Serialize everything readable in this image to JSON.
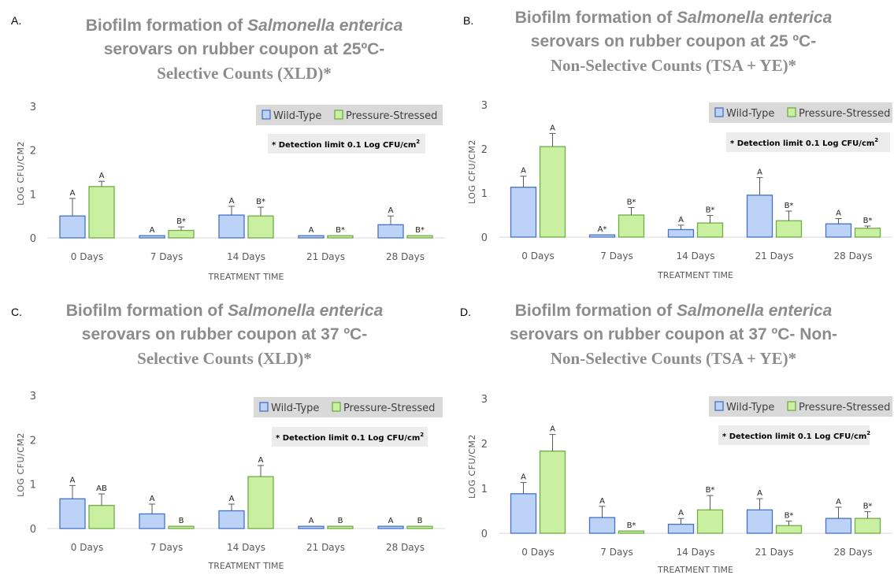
{
  "colors": {
    "wild_type_fill": "#bcd2f7",
    "wild_type_stroke": "#4472c4",
    "pressure_fill": "#c9f0a0",
    "pressure_stroke": "#70ad47",
    "title": "#8c8c8c",
    "axis_text": "#595959",
    "legend_bg": "#d9d9d9"
  },
  "chart_data": [
    {
      "type": "bar",
      "panel_label": "A.",
      "title_line1_prefix": "Biofilm formation of ",
      "title_line1_species": "Salmonella enterica",
      "title_line2": "serovars on rubber coupon at 25ºC-",
      "title_line3": "Selective Counts (XLD)*",
      "ylabel": "LOG CFU/CM2",
      "xlabel": "TREATMENT TIME",
      "ylim": [
        0,
        3
      ],
      "yticks": [
        "0",
        "1",
        "2",
        "3"
      ],
      "categories": [
        "0 Days",
        "7 Days",
        "14 Days",
        "21 Days",
        "28 Days"
      ],
      "series": [
        {
          "name": "Wild-Type",
          "values": [
            0.5,
            0.05,
            0.52,
            0.05,
            0.3
          ],
          "errors": [
            0.4,
            0.0,
            0.2,
            0.0,
            0.2
          ],
          "labels": [
            "A",
            "A",
            "A",
            "A",
            "A"
          ]
        },
        {
          "name": "Pressure-Stressed",
          "values": [
            1.17,
            0.17,
            0.5,
            0.05,
            0.05
          ],
          "errors": [
            0.12,
            0.08,
            0.2,
            0.0,
            0.0
          ],
          "labels": [
            "A",
            "B*",
            "B*",
            "B*",
            "B*"
          ]
        }
      ],
      "legend_position": "top-right",
      "note_prefix": "* Detection limit 0.1 Log CFU/cm",
      "note_sup": "2"
    },
    {
      "type": "bar",
      "panel_label": "B.",
      "title_line1_prefix": "Biofilm formation of ",
      "title_line1_species": "Salmonella enterica",
      "title_line2": "serovars on rubber coupon at 25 ºC-",
      "title_line3": "Non-Selective  Counts (TSA + YE)*",
      "ylabel": "LOG CFU/CM2",
      "xlabel": "TREATMENT TIME",
      "ylim": [
        0,
        3
      ],
      "yticks": [
        "0",
        "1",
        "2",
        "3"
      ],
      "categories": [
        "0 Days",
        "7 Days",
        "14 Days",
        "21 Days",
        "28 Days"
      ],
      "series": [
        {
          "name": "Wild-Type",
          "values": [
            1.13,
            0.05,
            0.17,
            0.95,
            0.3
          ],
          "errors": [
            0.25,
            0.0,
            0.1,
            0.4,
            0.12
          ],
          "labels": [
            "A",
            "A*",
            "A",
            "A",
            "A"
          ]
        },
        {
          "name": "Pressure-Stressed",
          "values": [
            2.05,
            0.5,
            0.32,
            0.37,
            0.2
          ],
          "errors": [
            0.3,
            0.17,
            0.17,
            0.22,
            0.05
          ],
          "labels": [
            "A",
            "B*",
            "B*",
            "B*",
            "B*"
          ]
        }
      ],
      "legend_position": "top-right",
      "note_prefix": "* Detection limit 0.1 Log CFU/cm",
      "note_sup": "2"
    },
    {
      "type": "bar",
      "panel_label": "C.",
      "title_line1_prefix": "Biofilm formation of ",
      "title_line1_species": "Salmonella enterica",
      "title_line2": "serovars on rubber coupon at 37 ºC-",
      "title_line3": "Selective  Counts (XLD)*",
      "ylabel": "LOG CFU/CM2",
      "xlabel": "TREATMENT TIME",
      "ylim": [
        0,
        3
      ],
      "yticks": [
        "0",
        "1",
        "2",
        "3"
      ],
      "categories": [
        "0 Days",
        "7 Days",
        "14 Days",
        "21 Days",
        "28 Days"
      ],
      "series": [
        {
          "name": "Wild-Type",
          "values": [
            0.67,
            0.33,
            0.4,
            0.05,
            0.05
          ],
          "errors": [
            0.3,
            0.22,
            0.15,
            0.0,
            0.0
          ],
          "labels": [
            "A",
            "A",
            "A",
            "A",
            "A"
          ]
        },
        {
          "name": "Pressure-Stressed",
          "values": [
            0.52,
            0.05,
            1.17,
            0.05,
            0.05
          ],
          "errors": [
            0.26,
            0.0,
            0.25,
            0.0,
            0.0
          ],
          "labels": [
            "AB",
            "B",
            "A",
            "B",
            "B"
          ]
        }
      ],
      "legend_position": "top-right",
      "note_prefix": "* Detection limit 0.1 Log CFU/cm",
      "note_sup": "2"
    },
    {
      "type": "bar",
      "panel_label": "D.",
      "title_line1_prefix": "Biofilm formation of ",
      "title_line1_species": "Salmonella enterica",
      "title_line2": "serovars on rubber coupon at 37 ºC- Non-",
      "title_line3": "Non-Selective  Counts (TSA + YE)*",
      "ylabel": "LOG CFU/CM2",
      "xlabel": "TREATMENT TIME",
      "ylim": [
        0,
        3
      ],
      "yticks": [
        "0",
        "1",
        "2",
        "3"
      ],
      "categories": [
        "0 Days",
        "7 Days",
        "14 Days",
        "21 Days",
        "28 Days"
      ],
      "series": [
        {
          "name": "Wild-Type",
          "values": [
            0.88,
            0.35,
            0.2,
            0.52,
            0.33
          ],
          "errors": [
            0.25,
            0.25,
            0.13,
            0.25,
            0.25
          ],
          "labels": [
            "A",
            "A",
            "A",
            "A",
            "A"
          ]
        },
        {
          "name": "Pressure-Stressed",
          "values": [
            1.83,
            0.05,
            0.52,
            0.17,
            0.33
          ],
          "errors": [
            0.37,
            0.0,
            0.32,
            0.1,
            0.15
          ],
          "labels": [
            "A",
            "B*",
            "B*",
            "B*",
            "B*"
          ]
        }
      ],
      "legend_position": "top-right",
      "note_prefix": "* Detection limit 0.1 Log CFU/cm",
      "note_sup": "2"
    }
  ]
}
